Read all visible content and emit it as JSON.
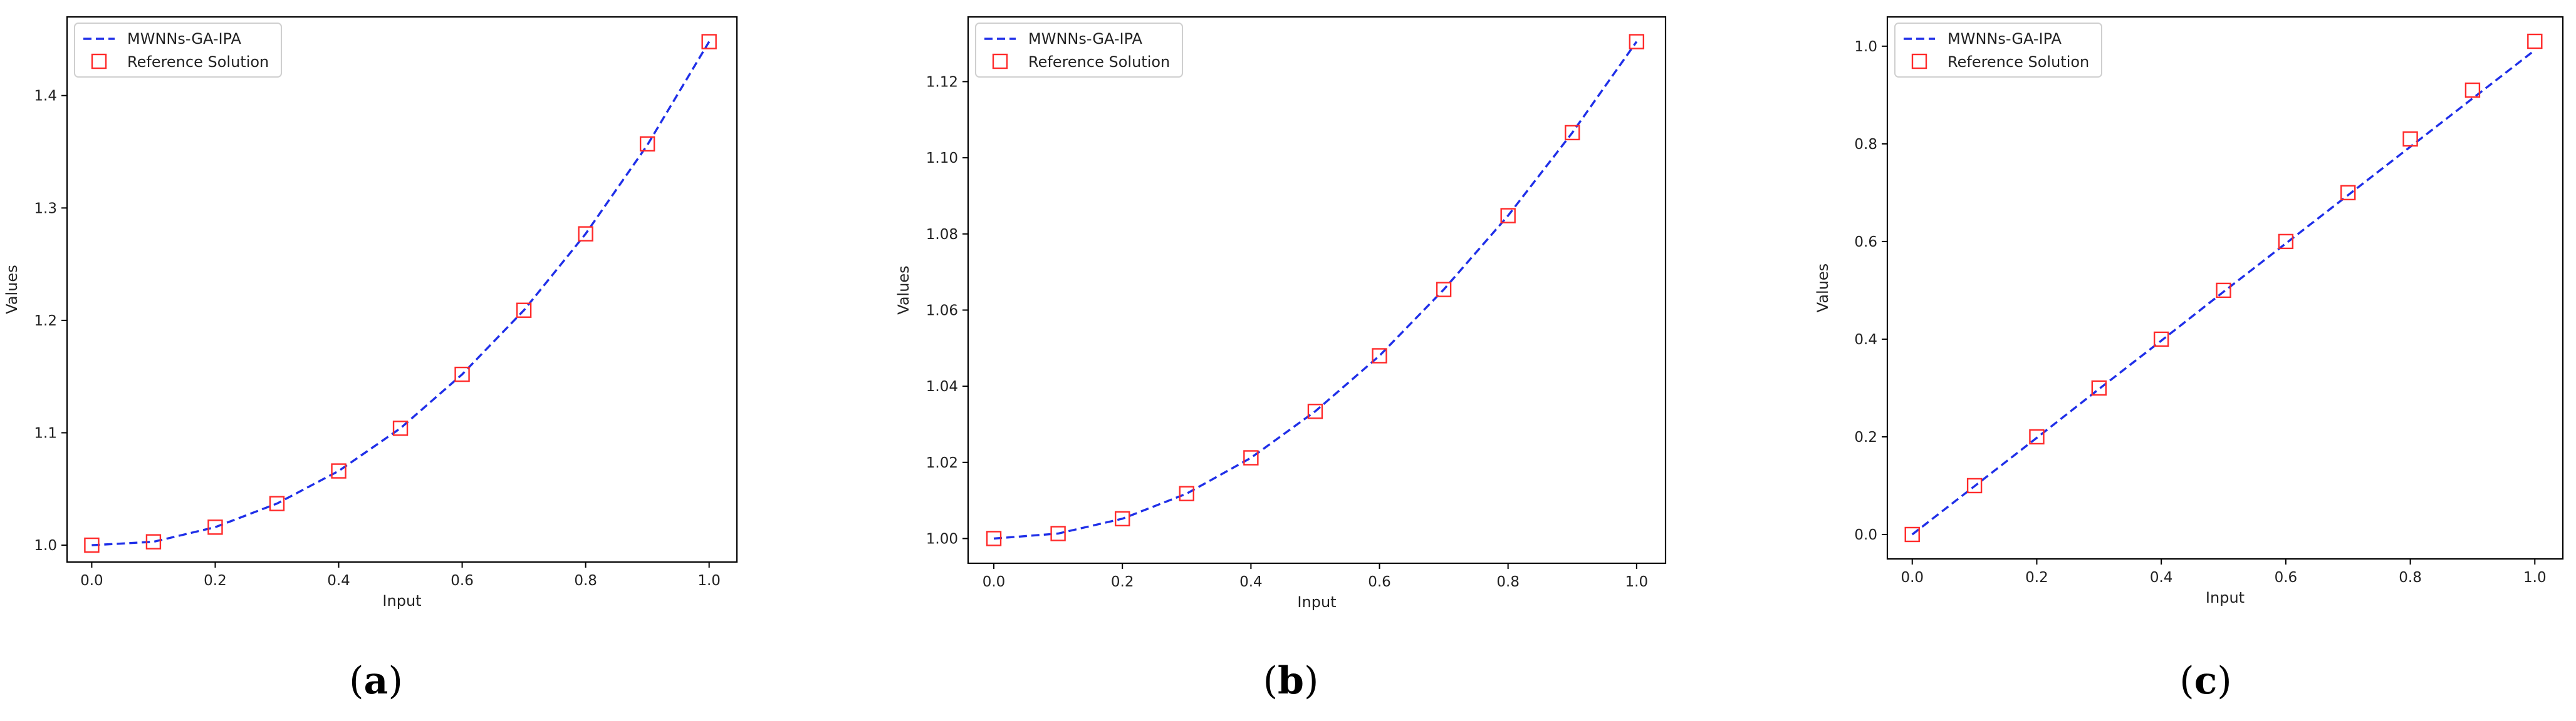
{
  "chart_data": [
    {
      "type": "line",
      "panel_label": "a",
      "xlabel": "Input",
      "ylabel": "Values",
      "xlim": [
        -0.04,
        1.045
      ],
      "ylim": [
        0.985,
        1.47
      ],
      "xticks": [
        "0.0",
        "0.2",
        "0.4",
        "0.6",
        "0.8",
        "1.0"
      ],
      "yticks": [
        "1.0",
        "1.1",
        "1.2",
        "1.3",
        "1.4"
      ],
      "grid": false,
      "legend_position": "top-left",
      "x": [
        0.0,
        0.1,
        0.2,
        0.3,
        0.4,
        0.5,
        0.6,
        0.7,
        0.8,
        0.9,
        1.0
      ],
      "series": [
        {
          "name": "MWNNs-GA-IPA",
          "style": "dashed-line",
          "color": "#1f2fe8",
          "values": [
            1.0,
            1.003,
            1.016,
            1.037,
            1.066,
            1.104,
            1.152,
            1.209,
            1.277,
            1.356,
            1.448
          ]
        },
        {
          "name": "Reference Solution",
          "style": "square-markers",
          "color": "#ff2a2a",
          "values": [
            1.0,
            1.003,
            1.016,
            1.037,
            1.066,
            1.104,
            1.152,
            1.209,
            1.277,
            1.357,
            1.448
          ]
        }
      ]
    },
    {
      "type": "line",
      "panel_label": "b",
      "xlabel": "Input",
      "ylabel": "Values",
      "xlim": [
        -0.04,
        1.045
      ],
      "ylim": [
        0.9935,
        1.137
      ],
      "xticks": [
        "0.0",
        "0.2",
        "0.4",
        "0.6",
        "0.8",
        "1.0"
      ],
      "yticks": [
        "1.00",
        "1.02",
        "1.04",
        "1.06",
        "1.08",
        "1.10",
        "1.12"
      ],
      "grid": false,
      "legend_position": "top-left",
      "x": [
        0.0,
        0.1,
        0.2,
        0.3,
        0.4,
        0.5,
        0.6,
        0.7,
        0.8,
        0.9,
        1.0
      ],
      "series": [
        {
          "name": "MWNNs-GA-IPA",
          "style": "dashed-line",
          "color": "#1f2fe8",
          "values": [
            1.0,
            1.0013,
            1.0052,
            1.0118,
            1.0212,
            1.0334,
            1.048,
            1.0654,
            1.0848,
            1.1066,
            1.1305
          ]
        },
        {
          "name": "Reference Solution",
          "style": "square-markers",
          "color": "#ff2a2a",
          "values": [
            1.0,
            1.0013,
            1.0052,
            1.0118,
            1.0212,
            1.0334,
            1.048,
            1.0654,
            1.0848,
            1.1066,
            1.1305
          ]
        }
      ]
    },
    {
      "type": "line",
      "panel_label": "c",
      "xlabel": "Input",
      "ylabel": "Values",
      "xlim": [
        -0.04,
        1.045
      ],
      "ylim": [
        -0.05,
        1.06
      ],
      "xticks": [
        "0.0",
        "0.2",
        "0.4",
        "0.6",
        "0.8",
        "1.0"
      ],
      "yticks": [
        "0.0",
        "0.2",
        "0.4",
        "0.6",
        "0.8",
        "1.0"
      ],
      "grid": false,
      "legend_position": "top-left",
      "x": [
        0.0,
        0.1,
        0.2,
        0.3,
        0.4,
        0.5,
        0.6,
        0.7,
        0.8,
        0.9,
        1.0
      ],
      "series": [
        {
          "name": "MWNNs-GA-IPA",
          "style": "dashed-line",
          "color": "#1f2fe8",
          "values": [
            0.0,
            0.099,
            0.198,
            0.298,
            0.397,
            0.497,
            0.596,
            0.695,
            0.794,
            0.893,
            0.992
          ]
        },
        {
          "name": "Reference Solution",
          "style": "square-markers",
          "color": "#ff2a2a",
          "values": [
            0.0,
            0.1,
            0.2,
            0.3,
            0.4,
            0.5,
            0.6,
            0.7,
            0.81,
            0.91,
            1.01
          ]
        }
      ]
    }
  ]
}
